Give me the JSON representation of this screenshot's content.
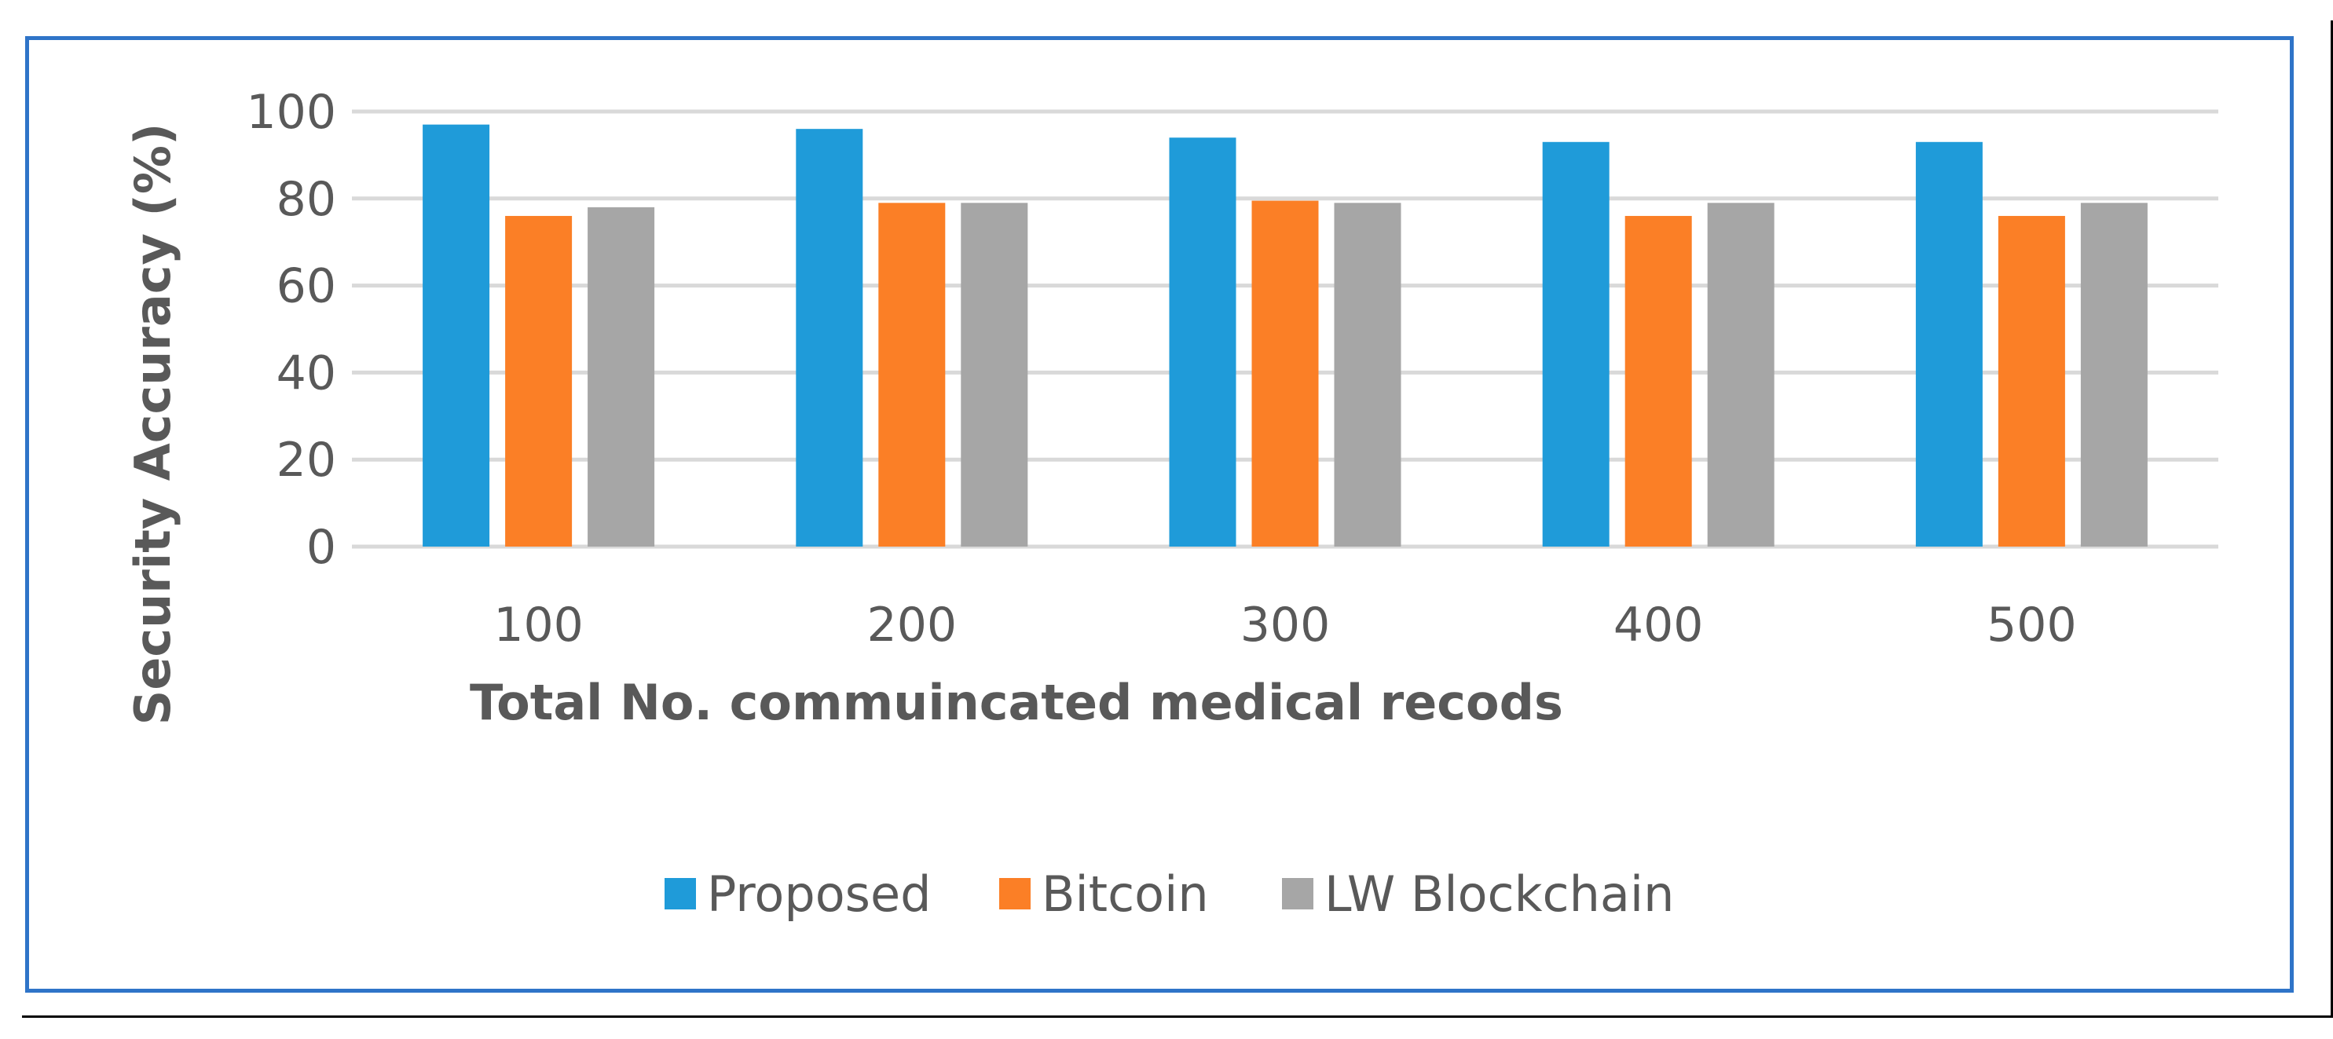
{
  "chart_data": {
    "type": "bar",
    "title": "",
    "xlabel": "Total No. commuincated medical recods",
    "ylabel": "Security Accuracy (%)",
    "categories": [
      "100",
      "200",
      "300",
      "400",
      "500"
    ],
    "ylim": [
      0,
      100
    ],
    "yticks": [
      "0",
      "20",
      "40",
      "60",
      "80",
      "100"
    ],
    "grid": true,
    "legend_position": "bottom",
    "series": [
      {
        "name": "Proposed",
        "color": "#1f9bd9",
        "values": [
          97,
          96,
          94,
          93,
          93
        ]
      },
      {
        "name": "Bitcoin",
        "color": "#fb7f26",
        "values": [
          76,
          79,
          79.5,
          76,
          76
        ]
      },
      {
        "name": "LW Blockchain",
        "color": "#a6a6a6",
        "values": [
          78,
          79,
          79,
          79,
          79
        ]
      }
    ]
  }
}
